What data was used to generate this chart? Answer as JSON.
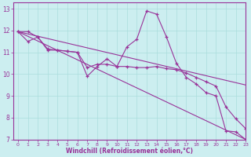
{
  "title": "",
  "xlabel": "Windchill (Refroidissement éolien,°C)",
  "background_color": "#cceef0",
  "grid_color": "#aadddd",
  "line_color": "#993399",
  "xlim": [
    -0.5,
    23
  ],
  "ylim": [
    7,
    13.3
  ],
  "yticks": [
    7,
    8,
    9,
    10,
    11,
    12,
    13
  ],
  "xticks": [
    0,
    1,
    2,
    3,
    4,
    5,
    6,
    7,
    8,
    9,
    10,
    11,
    12,
    13,
    14,
    15,
    16,
    17,
    18,
    19,
    20,
    21,
    22,
    23
  ],
  "series_main": {
    "x": [
      0,
      1,
      2,
      3,
      4,
      5,
      6,
      7,
      8,
      9,
      10,
      11,
      12,
      13,
      14,
      15,
      16,
      17,
      18,
      19,
      20,
      21,
      22,
      23
    ],
    "y": [
      11.95,
      11.95,
      11.7,
      11.1,
      11.1,
      11.05,
      11.0,
      9.9,
      10.35,
      10.7,
      10.35,
      11.25,
      11.6,
      12.9,
      12.75,
      11.7,
      10.5,
      9.85,
      9.55,
      9.15,
      9.0,
      7.4,
      7.35,
      7.0
    ]
  },
  "series_smooth": {
    "x": [
      0,
      1,
      2,
      3,
      4,
      5,
      6,
      7,
      8,
      9,
      10,
      11,
      12,
      13,
      14,
      15,
      16,
      17,
      18,
      19,
      20,
      21,
      22,
      23
    ],
    "y": [
      11.95,
      11.5,
      11.7,
      11.15,
      11.1,
      11.05,
      11.0,
      10.3,
      10.45,
      10.45,
      10.35,
      10.35,
      10.3,
      10.3,
      10.35,
      10.25,
      10.2,
      10.05,
      9.85,
      9.65,
      9.45,
      8.5,
      7.95,
      7.5
    ]
  },
  "trend1": {
    "x": [
      0,
      23
    ],
    "y": [
      11.95,
      7.0
    ]
  },
  "trend2": {
    "x": [
      0,
      23
    ],
    "y": [
      11.95,
      9.5
    ]
  }
}
